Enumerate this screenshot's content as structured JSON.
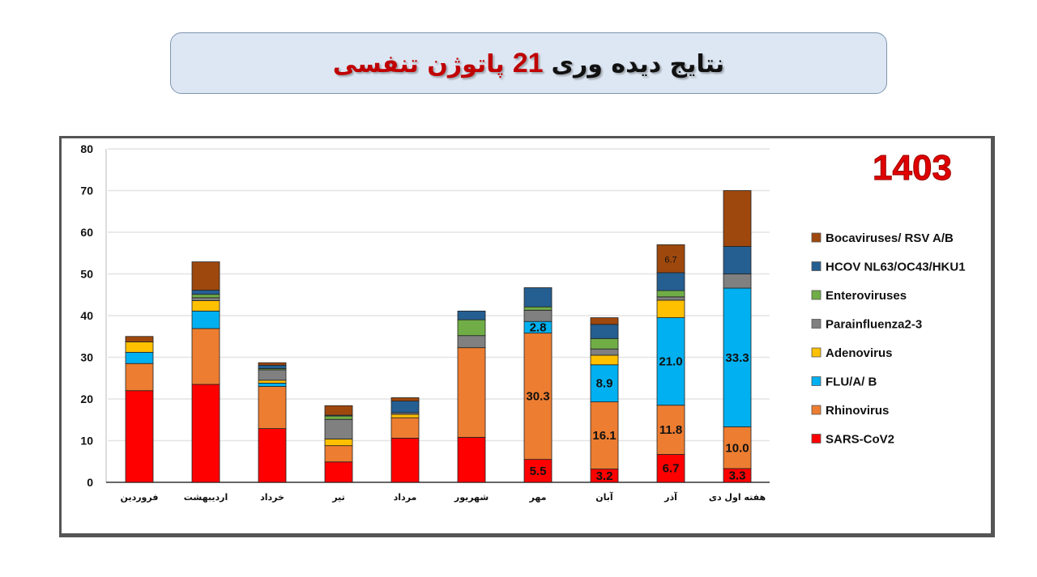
{
  "header": {
    "title_part1": "نتایج دیده وری",
    "title_number": "21",
    "title_part2": "پاتوژن تنفسی"
  },
  "chart_data": {
    "type": "bar",
    "stacked": true,
    "title": "نتایج دیده وری 21 پاتوژن تنفسی",
    "year_label": "1403",
    "xlabel": "",
    "ylabel": "",
    "ylim": [
      0,
      80
    ],
    "yticks": [
      0,
      10,
      20,
      30,
      40,
      50,
      60,
      70,
      80
    ],
    "grid": true,
    "legend_position": "right",
    "categories": [
      "فروردین",
      "اردیبهشت",
      "خرداد",
      "تیر",
      "مرداد",
      "شهریور",
      "مهر",
      "آبان",
      "آذر",
      "هفته اول دی"
    ],
    "series": [
      {
        "name": "SARS-CoV2",
        "color": "#ff0000",
        "values": [
          22.0,
          23.5,
          12.9,
          4.9,
          10.6,
          10.8,
          5.5,
          3.2,
          6.7,
          3.3
        ],
        "labels": [
          null,
          null,
          null,
          null,
          null,
          null,
          "5.5",
          "3.2",
          "6.7",
          "3.3"
        ]
      },
      {
        "name": "Rhinovirus",
        "color": "#ed7d31",
        "values": [
          6.5,
          13.4,
          10.1,
          3.9,
          4.9,
          21.5,
          30.3,
          16.1,
          11.8,
          10.0
        ],
        "labels": [
          null,
          null,
          null,
          null,
          null,
          null,
          "30.3",
          "16.1",
          "11.8",
          "10.0"
        ]
      },
      {
        "name": "FLU/A/ B",
        "color": "#00b0f0",
        "values": [
          2.7,
          4.2,
          0.8,
          0,
          0,
          0,
          2.8,
          8.9,
          21.0,
          33.3
        ],
        "labels": [
          null,
          null,
          null,
          null,
          null,
          null,
          "2.8",
          "8.9",
          "21.0",
          "33.3"
        ]
      },
      {
        "name": "Adenovirus",
        "color": "#ffc000",
        "values": [
          2.5,
          2.5,
          0.7,
          1.6,
          0.8,
          0,
          0,
          2.3,
          4.2,
          0
        ],
        "labels": [
          null,
          null,
          null,
          null,
          null,
          null,
          null,
          null,
          null,
          null
        ]
      },
      {
        "name": "Parainfluenza2-3",
        "color": "#808080",
        "values": [
          0,
          0.7,
          2.5,
          4.7,
          0.4,
          2.9,
          2.7,
          1.5,
          0.8,
          3.4
        ],
        "labels": [
          null,
          null,
          null,
          null,
          null,
          null,
          null,
          null,
          null,
          null
        ]
      },
      {
        "name": "Enteroviruses",
        "color": "#70ad47",
        "values": [
          0,
          0.8,
          0.3,
          0.8,
          0,
          3.8,
          0.8,
          2.5,
          1.5,
          0
        ],
        "labels": [
          null,
          null,
          null,
          null,
          null,
          null,
          null,
          null,
          null,
          null
        ]
      },
      {
        "name": "HCOV NL63/OC43/HKU1",
        "color": "#255e91",
        "values": [
          0,
          1.0,
          0.8,
          0.2,
          2.8,
          2.1,
          4.6,
          3.4,
          4.3,
          6.6
        ],
        "labels": [
          null,
          null,
          null,
          null,
          null,
          null,
          null,
          null,
          null,
          null
        ]
      },
      {
        "name": "Bocaviruses/ RSV A/B",
        "color": "#9e480e",
        "values": [
          1.3,
          6.8,
          0.6,
          2.3,
          0.8,
          0,
          0,
          1.6,
          6.7,
          13.4
        ],
        "labels": [
          null,
          null,
          null,
          null,
          null,
          null,
          null,
          null,
          "6.7",
          null
        ]
      }
    ]
  }
}
